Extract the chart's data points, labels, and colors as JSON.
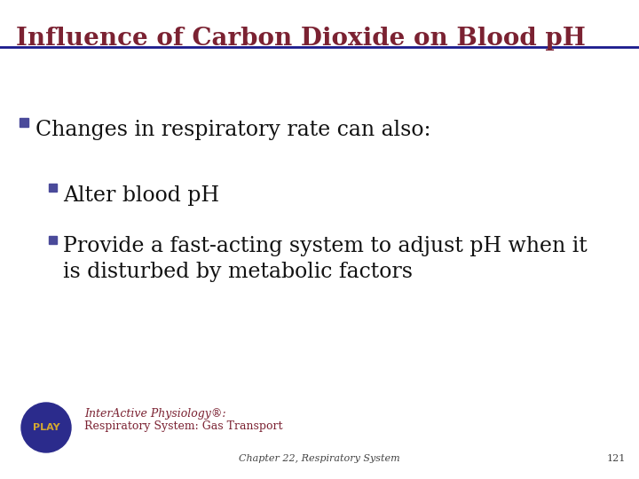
{
  "title": "Influence of Carbon Dioxide on Blood pH",
  "title_color": "#7B2232",
  "title_fontsize": 20,
  "line_color": "#1A1A8C",
  "background_color": "#FFFFFF",
  "bullet_color": "#4A4A9A",
  "bullet1": "Changes in respiratory rate can also:",
  "bullet2": "Alter blood pH",
  "bullet3_line1": "Provide a fast-acting system to adjust pH when it",
  "bullet3_line2": "is disturbed by metabolic factors",
  "body_fontsize": 17,
  "sub_body_fontsize": 17,
  "play_circle_color": "#2B2B8C",
  "play_text_color": "#D4A830",
  "play_label": "PLAY",
  "inter_active_line1": "InterActive Physiology®:",
  "inter_active_line2": "Respiratory System: Gas Transport",
  "footer_text": "Chapter 22, Respiratory System",
  "footer_page": "121",
  "footer_fontsize": 8,
  "inter_active_fontsize": 9
}
